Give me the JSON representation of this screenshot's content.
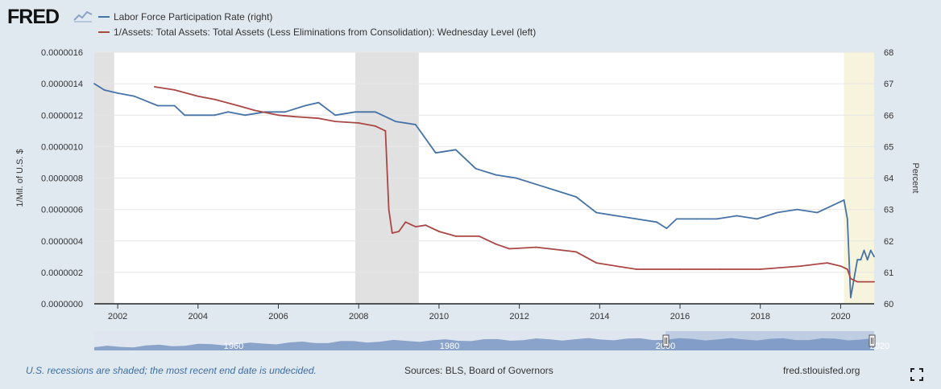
{
  "logo": {
    "text": "FRED"
  },
  "legend": [
    {
      "label": "Labor Force Participation Rate (right)",
      "color": "#4572a7"
    },
    {
      "label": "1/Assets: Total Assets: Total Assets (Less Eliminations from Consolidation): Wednesday Level (left)",
      "color": "#aa4643"
    }
  ],
  "footer": {
    "note": "U.S. recessions are shaded; the most recent end date is undecided.",
    "sources": "Sources: BLS, Board of Governors",
    "url": "fred.stlouisfed.org"
  },
  "colors": {
    "background": "#e1e9f0",
    "plot_background": "#ffffff",
    "recession_shade": "#e1e1e1",
    "undecided_recession_shade": "#f6f4dc",
    "grid": "#e6e6e6",
    "navigator_fill": "#6d8cbd"
  },
  "icons": {
    "fullscreen": "fullscreen-icon",
    "logo_graph": "chart-line-icon"
  },
  "chart_data": {
    "type": "line",
    "xlim": [
      "2001-06-01",
      "2020-11-01"
    ],
    "x_ticks": [
      "2002",
      "2004",
      "2006",
      "2008",
      "2010",
      "2012",
      "2014",
      "2016",
      "2018",
      "2020"
    ],
    "y_left": {
      "label": "1/Mil. of U.S. $",
      "ylim": [
        0,
        1.6e-06
      ],
      "ticks": [
        "0.0000000",
        "0.0000002",
        "0.0000004",
        "0.0000006",
        "0.0000008",
        "0.0000010",
        "0.0000012",
        "0.0000014",
        "0.0000016"
      ]
    },
    "y_right": {
      "label": "Percent",
      "ylim": [
        60,
        68
      ],
      "ticks": [
        "60",
        "61",
        "62",
        "63",
        "64",
        "65",
        "66",
        "67",
        "68"
      ]
    },
    "grid": true,
    "recessions": [
      {
        "start": "2001-06-01",
        "end": "2001-11-30"
      },
      {
        "start": "2007-12-01",
        "end": "2009-06-30"
      },
      {
        "start": "2020-02-01",
        "end": "2020-11-01",
        "undecided": true
      }
    ],
    "series": [
      {
        "name": "Labor Force Participation Rate (right)",
        "axis": "right",
        "color": "#4572a7",
        "points": [
          [
            "2001-06",
            67.0
          ],
          [
            "2001-09",
            66.8
          ],
          [
            "2002-01",
            66.7
          ],
          [
            "2002-06",
            66.6
          ],
          [
            "2003-01",
            66.3
          ],
          [
            "2003-06",
            66.3
          ],
          [
            "2003-09",
            66.0
          ],
          [
            "2004-01",
            66.0
          ],
          [
            "2004-06",
            66.0
          ],
          [
            "2004-10",
            66.1
          ],
          [
            "2005-03",
            66.0
          ],
          [
            "2005-09",
            66.1
          ],
          [
            "2006-03",
            66.1
          ],
          [
            "2006-09",
            66.3
          ],
          [
            "2007-01",
            66.4
          ],
          [
            "2007-06",
            66.0
          ],
          [
            "2007-12",
            66.1
          ],
          [
            "2008-06",
            66.1
          ],
          [
            "2008-12",
            65.8
          ],
          [
            "2009-06",
            65.7
          ],
          [
            "2009-12",
            64.8
          ],
          [
            "2010-06",
            64.9
          ],
          [
            "2010-12",
            64.3
          ],
          [
            "2011-06",
            64.1
          ],
          [
            "2011-12",
            64.0
          ],
          [
            "2012-06",
            63.8
          ],
          [
            "2012-12",
            63.6
          ],
          [
            "2013-06",
            63.4
          ],
          [
            "2013-12",
            62.9
          ],
          [
            "2014-06",
            62.8
          ],
          [
            "2014-12",
            62.7
          ],
          [
            "2015-06",
            62.6
          ],
          [
            "2015-09",
            62.4
          ],
          [
            "2015-12",
            62.7
          ],
          [
            "2016-06",
            62.7
          ],
          [
            "2016-12",
            62.7
          ],
          [
            "2017-06",
            62.8
          ],
          [
            "2017-12",
            62.7
          ],
          [
            "2018-06",
            62.9
          ],
          [
            "2018-12",
            63.0
          ],
          [
            "2019-06",
            62.9
          ],
          [
            "2019-12",
            63.2
          ],
          [
            "2020-02",
            63.3
          ],
          [
            "2020-03",
            62.7
          ],
          [
            "2020-04",
            60.2
          ],
          [
            "2020-05",
            60.8
          ],
          [
            "2020-06",
            61.4
          ],
          [
            "2020-07",
            61.4
          ],
          [
            "2020-08",
            61.7
          ],
          [
            "2020-09",
            61.4
          ],
          [
            "2020-10",
            61.7
          ],
          [
            "2020-11",
            61.5
          ]
        ]
      },
      {
        "name": "1/Assets: Total Assets: Total Assets (Less Eliminations from Consolidation): Wednesday Level (left)",
        "axis": "left",
        "color": "#aa4643",
        "points": [
          [
            "2002-12",
            1.38e-06
          ],
          [
            "2003-06",
            1.36e-06
          ],
          [
            "2004-01",
            1.32e-06
          ],
          [
            "2004-06",
            1.3e-06
          ],
          [
            "2005-01",
            1.26e-06
          ],
          [
            "2005-06",
            1.23e-06
          ],
          [
            "2006-01",
            1.2e-06
          ],
          [
            "2006-06",
            1.19e-06
          ],
          [
            "2007-01",
            1.18e-06
          ],
          [
            "2007-06",
            1.16e-06
          ],
          [
            "2008-01",
            1.15e-06
          ],
          [
            "2008-06",
            1.13e-06
          ],
          [
            "2008-09",
            1.1e-06
          ],
          [
            "2008-10",
            6e-07
          ],
          [
            "2008-11",
            4.5e-07
          ],
          [
            "2009-01",
            4.6e-07
          ],
          [
            "2009-03",
            5.2e-07
          ],
          [
            "2009-06",
            4.9e-07
          ],
          [
            "2009-09",
            5e-07
          ],
          [
            "2010-01",
            4.6e-07
          ],
          [
            "2010-06",
            4.3e-07
          ],
          [
            "2011-01",
            4.3e-07
          ],
          [
            "2011-06",
            3.8e-07
          ],
          [
            "2011-10",
            3.5e-07
          ],
          [
            "2012-06",
            3.6e-07
          ],
          [
            "2012-10",
            3.5e-07
          ],
          [
            "2013-06",
            3.3e-07
          ],
          [
            "2013-12",
            2.6e-07
          ],
          [
            "2014-06",
            2.4e-07
          ],
          [
            "2014-12",
            2.2e-07
          ],
          [
            "2016-01",
            2.2e-07
          ],
          [
            "2017-01",
            2.2e-07
          ],
          [
            "2018-01",
            2.2e-07
          ],
          [
            "2019-01",
            2.4e-07
          ],
          [
            "2019-09",
            2.6e-07
          ],
          [
            "2020-01",
            2.4e-07
          ],
          [
            "2020-03",
            2.2e-07
          ],
          [
            "2020-04",
            1.6e-07
          ],
          [
            "2020-06",
            1.4e-07
          ],
          [
            "2020-11",
            1.4e-07
          ]
        ]
      }
    ],
    "navigator": {
      "ticks": [
        "1960",
        "1980",
        "2000",
        "2020"
      ]
    }
  }
}
